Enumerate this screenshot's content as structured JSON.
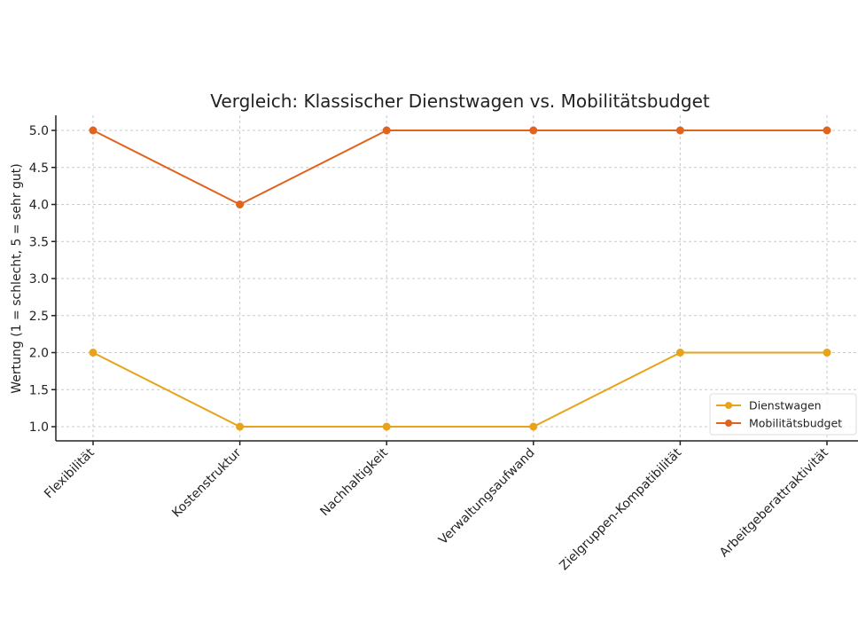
{
  "chart_data": {
    "type": "line",
    "title": "Vergleich: Klassischer Dienstwagen vs. Mobilitätsbudget",
    "xlabel": "",
    "ylabel": "Wertung (1 = schlecht, 5 = sehr gut)",
    "categories": [
      "Flexibilität",
      "Kostenstruktur",
      "Nachhaltigkeit",
      "Verwaltungsaufwand",
      "Zielgruppen-Kompatibilität",
      "Arbeitgeberattraktivität"
    ],
    "series": [
      {
        "name": "Dienstwagen",
        "color": "#E8A31A",
        "values": [
          2,
          1,
          1,
          1,
          2,
          2
        ]
      },
      {
        "name": "Mobilitätsbudget",
        "color": "#E0631E",
        "values": [
          5,
          4,
          5,
          5,
          5,
          5
        ]
      }
    ],
    "ylim": [
      0.8,
      5.2
    ],
    "yticks": [
      "1.0",
      "1.5",
      "2.0",
      "2.5",
      "3.0",
      "3.5",
      "4.0",
      "4.5",
      "5.0"
    ],
    "grid": true,
    "legend": "bottom-right",
    "marker": "circle"
  }
}
